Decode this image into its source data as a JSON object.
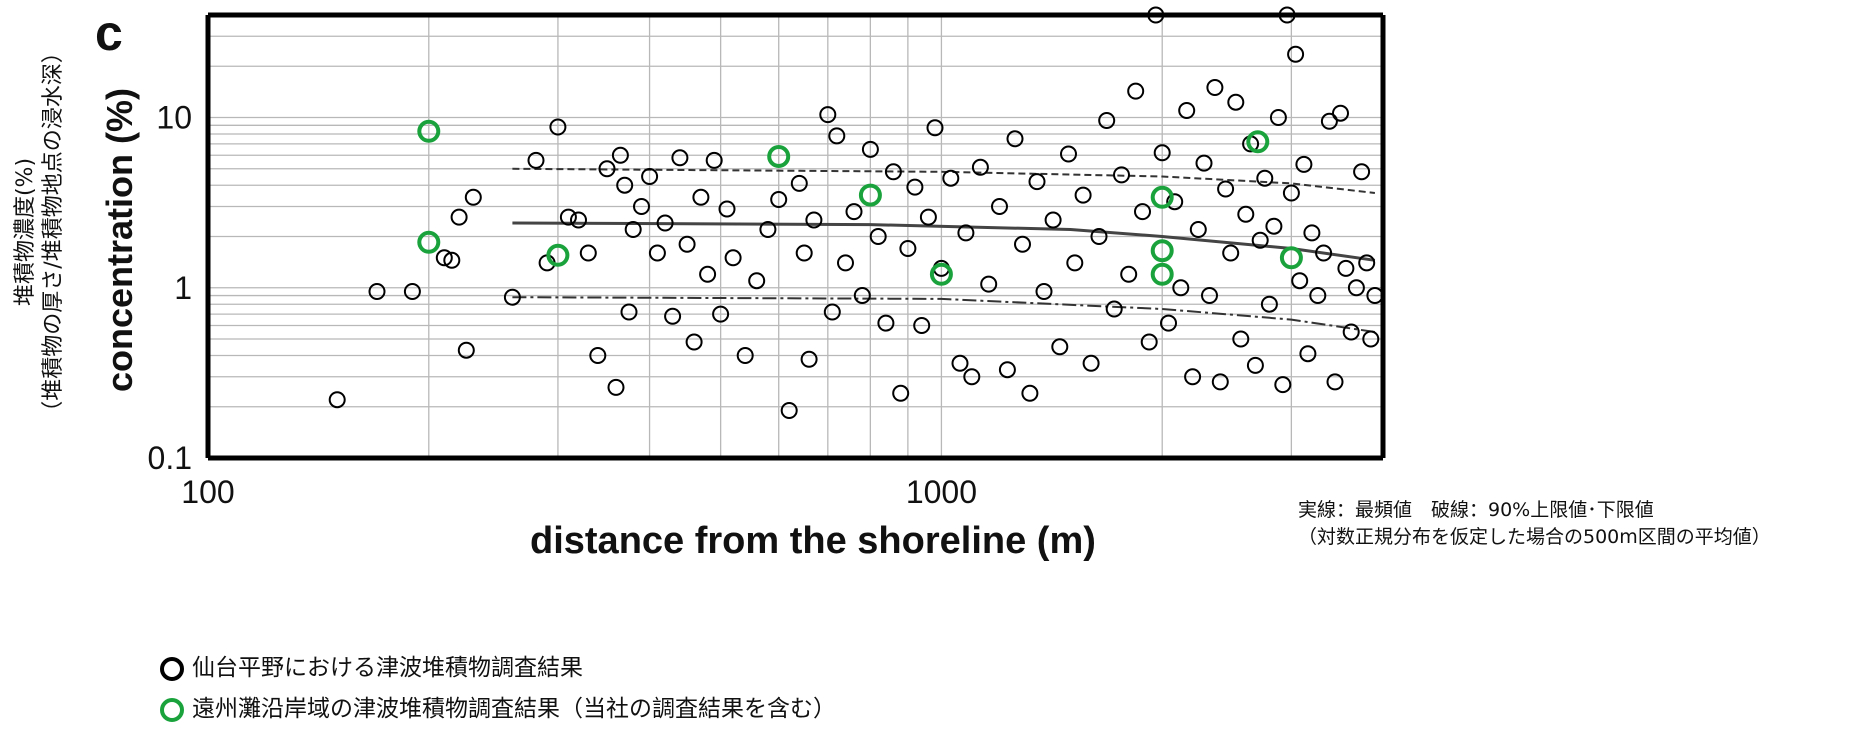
{
  "panel_label": "c",
  "y_axis_left_label": {
    "line1": "堆積物濃度(%)",
    "line2": "（堆積物の厚さ/堆積物地点の浸水深）"
  },
  "note": {
    "line1": "実線：最頻値　破線：90%上限値･下限値",
    "line2": "（対数正規分布を仮定した場合の500m区間の平均値）"
  },
  "legend": {
    "items": [
      {
        "label": "仙台平野における津波堆積物調査結果",
        "color": "#000000"
      },
      {
        "label": "遠州灘沿岸域の津波堆積物調査結果（当社の調査結果を含む）",
        "color": "#1aa33c"
      }
    ]
  },
  "chart_data": {
    "type": "scatter",
    "title": "",
    "xlabel": "distance from the shoreline (m)",
    "ylabel": "concentration (%)",
    "x_scale": "log",
    "y_scale": "log",
    "xlim": [
      100,
      4000
    ],
    "ylim": [
      0.1,
      40
    ],
    "x_ticks": [
      {
        "value": 100,
        "label": "100"
      },
      {
        "value": 1000,
        "label": "1000"
      }
    ],
    "y_ticks": [
      {
        "value": 0.1,
        "label": "0.1"
      },
      {
        "value": 1,
        "label": "1"
      },
      {
        "value": 10,
        "label": "10"
      }
    ],
    "grid": true,
    "series": [
      {
        "name": "仙台平野における津波堆積物調査結果",
        "color": "#000000",
        "marker": "open-circle",
        "points": [
          [
            150,
            0.22
          ],
          [
            170,
            0.95
          ],
          [
            190,
            0.95
          ],
          [
            210,
            1.5
          ],
          [
            215,
            1.45
          ],
          [
            220,
            2.6
          ],
          [
            225,
            0.43
          ],
          [
            230,
            3.4
          ],
          [
            260,
            0.88
          ],
          [
            280,
            5.6
          ],
          [
            290,
            1.4
          ],
          [
            300,
            8.8
          ],
          [
            310,
            2.6
          ],
          [
            320,
            2.5
          ],
          [
            330,
            1.6
          ],
          [
            340,
            0.4
          ],
          [
            350,
            5.0
          ],
          [
            360,
            0.26
          ],
          [
            365,
            6.0
          ],
          [
            370,
            4.0
          ],
          [
            375,
            0.72
          ],
          [
            380,
            2.2
          ],
          [
            390,
            3.0
          ],
          [
            400,
            4.5
          ],
          [
            410,
            1.6
          ],
          [
            420,
            2.4
          ],
          [
            430,
            0.68
          ],
          [
            440,
            5.8
          ],
          [
            450,
            1.8
          ],
          [
            460,
            0.48
          ],
          [
            470,
            3.4
          ],
          [
            480,
            1.2
          ],
          [
            490,
            5.6
          ],
          [
            500,
            0.7
          ],
          [
            510,
            2.9
          ],
          [
            520,
            1.5
          ],
          [
            540,
            0.4
          ],
          [
            560,
            1.1
          ],
          [
            580,
            2.2
          ],
          [
            600,
            3.3
          ],
          [
            620,
            0.19
          ],
          [
            640,
            4.1
          ],
          [
            650,
            1.6
          ],
          [
            660,
            0.38
          ],
          [
            670,
            2.5
          ],
          [
            700,
            10.4
          ],
          [
            710,
            0.72
          ],
          [
            720,
            7.8
          ],
          [
            740,
            1.4
          ],
          [
            760,
            2.8
          ],
          [
            780,
            0.9
          ],
          [
            800,
            6.5
          ],
          [
            820,
            2.0
          ],
          [
            840,
            0.62
          ],
          [
            860,
            4.8
          ],
          [
            880,
            0.24
          ],
          [
            900,
            1.7
          ],
          [
            920,
            3.9
          ],
          [
            940,
            0.6
          ],
          [
            960,
            2.6
          ],
          [
            980,
            8.7
          ],
          [
            1000,
            1.3
          ],
          [
            1030,
            4.4
          ],
          [
            1060,
            0.36
          ],
          [
            1080,
            2.1
          ],
          [
            1100,
            0.3
          ],
          [
            1130,
            5.1
          ],
          [
            1160,
            1.05
          ],
          [
            1200,
            3.0
          ],
          [
            1230,
            0.33
          ],
          [
            1260,
            7.5
          ],
          [
            1290,
            1.8
          ],
          [
            1320,
            0.24
          ],
          [
            1350,
            4.2
          ],
          [
            1380,
            0.95
          ],
          [
            1420,
            2.5
          ],
          [
            1450,
            0.45
          ],
          [
            1490,
            6.1
          ],
          [
            1520,
            1.4
          ],
          [
            1560,
            3.5
          ],
          [
            1600,
            0.36
          ],
          [
            1640,
            2.0
          ],
          [
            1680,
            9.6
          ],
          [
            1720,
            0.75
          ],
          [
            1760,
            4.6
          ],
          [
            1800,
            1.2
          ],
          [
            1840,
            14.3
          ],
          [
            1880,
            2.8
          ],
          [
            1920,
            0.48
          ],
          [
            1960,
            40.0
          ],
          [
            2000,
            6.2
          ],
          [
            2040,
            0.62
          ],
          [
            2080,
            3.2
          ],
          [
            2120,
            1.0
          ],
          [
            2160,
            11.0
          ],
          [
            2200,
            0.3
          ],
          [
            2240,
            2.2
          ],
          [
            2280,
            5.4
          ],
          [
            2320,
            0.9
          ],
          [
            2360,
            15.0
          ],
          [
            2400,
            0.28
          ],
          [
            2440,
            3.8
          ],
          [
            2480,
            1.6
          ],
          [
            2520,
            12.3
          ],
          [
            2560,
            0.5
          ],
          [
            2600,
            2.7
          ],
          [
            2640,
            7.0
          ],
          [
            2680,
            0.35
          ],
          [
            2720,
            1.9
          ],
          [
            2760,
            4.4
          ],
          [
            2800,
            0.8
          ],
          [
            2840,
            2.3
          ],
          [
            2880,
            10.0
          ],
          [
            2920,
            0.27
          ],
          [
            2960,
            40.0
          ],
          [
            3000,
            3.6
          ],
          [
            3040,
            23.5
          ],
          [
            3080,
            1.1
          ],
          [
            3120,
            5.3
          ],
          [
            3160,
            0.41
          ],
          [
            3200,
            2.1
          ],
          [
            3260,
            0.9
          ],
          [
            3320,
            1.6
          ],
          [
            3380,
            9.5
          ],
          [
            3440,
            0.28
          ],
          [
            3500,
            10.6
          ],
          [
            3560,
            1.3
          ],
          [
            3620,
            0.55
          ],
          [
            3680,
            1.0
          ],
          [
            3740,
            4.8
          ],
          [
            3800,
            1.4
          ],
          [
            3850,
            0.5
          ],
          [
            3900,
            0.9
          ]
        ]
      },
      {
        "name": "遠州灘沿岸域の津波堆積物調査結果（当社の調査結果を含む）",
        "color": "#1aa33c",
        "marker": "open-circle",
        "points": [
          [
            200,
            8.3
          ],
          [
            200,
            1.85
          ],
          [
            300,
            1.55
          ],
          [
            600,
            5.9
          ],
          [
            800,
            3.5
          ],
          [
            1000,
            1.2
          ],
          [
            2000,
            3.4
          ],
          [
            2000,
            1.65
          ],
          [
            2000,
            1.2
          ],
          [
            2700,
            7.2
          ],
          [
            3000,
            1.5
          ]
        ]
      }
    ],
    "lines": [
      {
        "name": "mode",
        "style": "solid",
        "points": [
          [
            260,
            2.4
          ],
          [
            800,
            2.35
          ],
          [
            1500,
            2.2
          ],
          [
            2000,
            2.0
          ],
          [
            3000,
            1.7
          ],
          [
            3900,
            1.45
          ]
        ]
      },
      {
        "name": "upper-90",
        "style": "dashed",
        "points": [
          [
            260,
            5.0
          ],
          [
            1000,
            4.8
          ],
          [
            2000,
            4.5
          ],
          [
            3000,
            4.1
          ],
          [
            3900,
            3.6
          ]
        ]
      },
      {
        "name": "lower-90",
        "style": "dashdot",
        "points": [
          [
            260,
            0.88
          ],
          [
            1000,
            0.86
          ],
          [
            2000,
            0.75
          ],
          [
            3000,
            0.65
          ],
          [
            3900,
            0.55
          ]
        ]
      }
    ]
  }
}
